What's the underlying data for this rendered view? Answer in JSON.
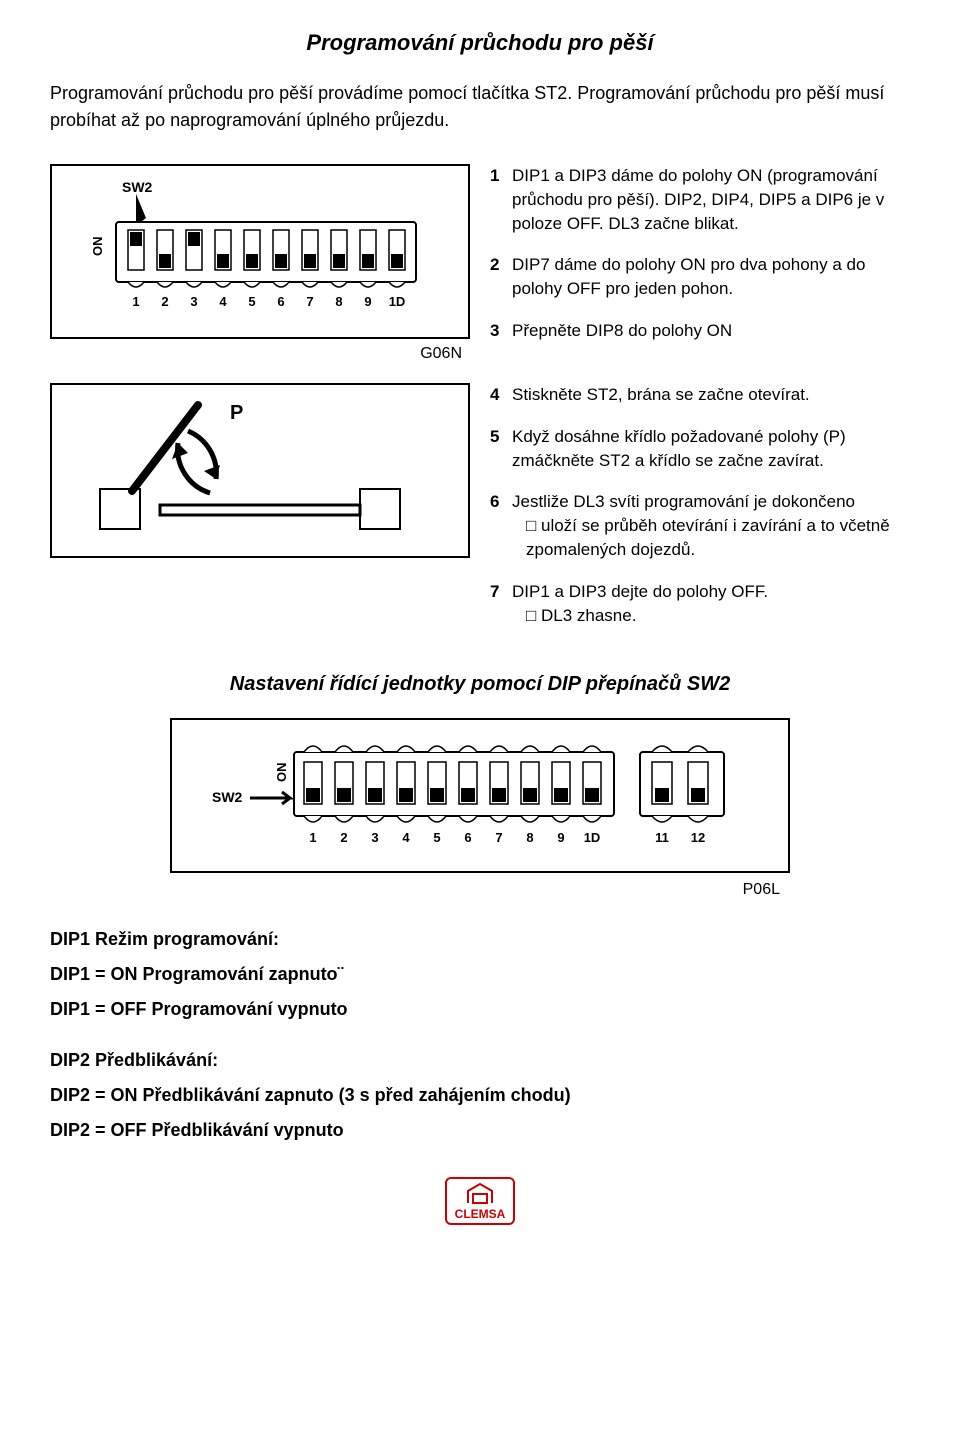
{
  "title": "Programování průchodu pro pěší",
  "intro": "Programování průchodu pro pěší provádíme pomocí tlačítka ST2. Programování průchodu pro pěší musí probíhat až po naprogramování úplného průjezdu.",
  "fig1": {
    "label_sw2": "SW2",
    "label_on": "ON",
    "caption": "G06N",
    "numbers": [
      "1",
      "2",
      "3",
      "4",
      "5",
      "6",
      "7",
      "8",
      "9",
      "1D"
    ]
  },
  "steps_a": [
    {
      "n": "1",
      "t": "DIP1 a DIP3 dáme do polohy ON (programování průchodu pro pěší). DIP2, DIP4, DIP5 a DIP6 je v poloze OFF. DL3 začne blikat."
    },
    {
      "n": "2",
      "t": "DIP7 dáme do polohy ON pro dva pohony a do polohy OFF pro jeden pohon."
    },
    {
      "n": "3",
      "t": "Přepněte DIP8 do polohy ON"
    }
  ],
  "fig2": {
    "label_p": "P"
  },
  "steps_b": [
    {
      "n": "4",
      "t": "Stiskněte ST2, brána se začne otevírat."
    },
    {
      "n": "5",
      "t": "Když dosáhne křídlo požadované polohy (P) zmáčkněte ST2 a křídlo se začne zavírat."
    },
    {
      "n": "6",
      "t": "Jestliže DL3 svíti programování je dokončeno",
      "sub": "uloží se průběh otevírání i zavírání a to včetně zpomalených dojezdů."
    },
    {
      "n": "7",
      "t": "DIP1 a DIP3 dejte do polohy OFF.",
      "sub": "DL3 zhasne."
    }
  ],
  "sub_title": "Nastavení řídící jednotky pomocí DIP přepínačů SW2",
  "fig3": {
    "label_sw2": "SW2",
    "label_on": "ON",
    "numbers_a": [
      "1",
      "2",
      "3",
      "4",
      "5",
      "6",
      "7",
      "8",
      "9",
      "1D"
    ],
    "numbers_b": [
      "11",
      "12"
    ],
    "caption": "P06L"
  },
  "dip1": {
    "heading": "DIP1 Režim programování:",
    "on": "DIP1 = ON Programování zapnuto¨",
    "off": "DIP1 = OFF Programování vypnuto"
  },
  "dip2": {
    "heading": "DIP2 Předblikávání:",
    "on": "DIP2 = ON Předblikávání zapnuto (3 s před zahájením chodu)",
    "off": "DIP2 = OFF Předblikávání vypnuto"
  },
  "logo_text": "CLEMSA"
}
